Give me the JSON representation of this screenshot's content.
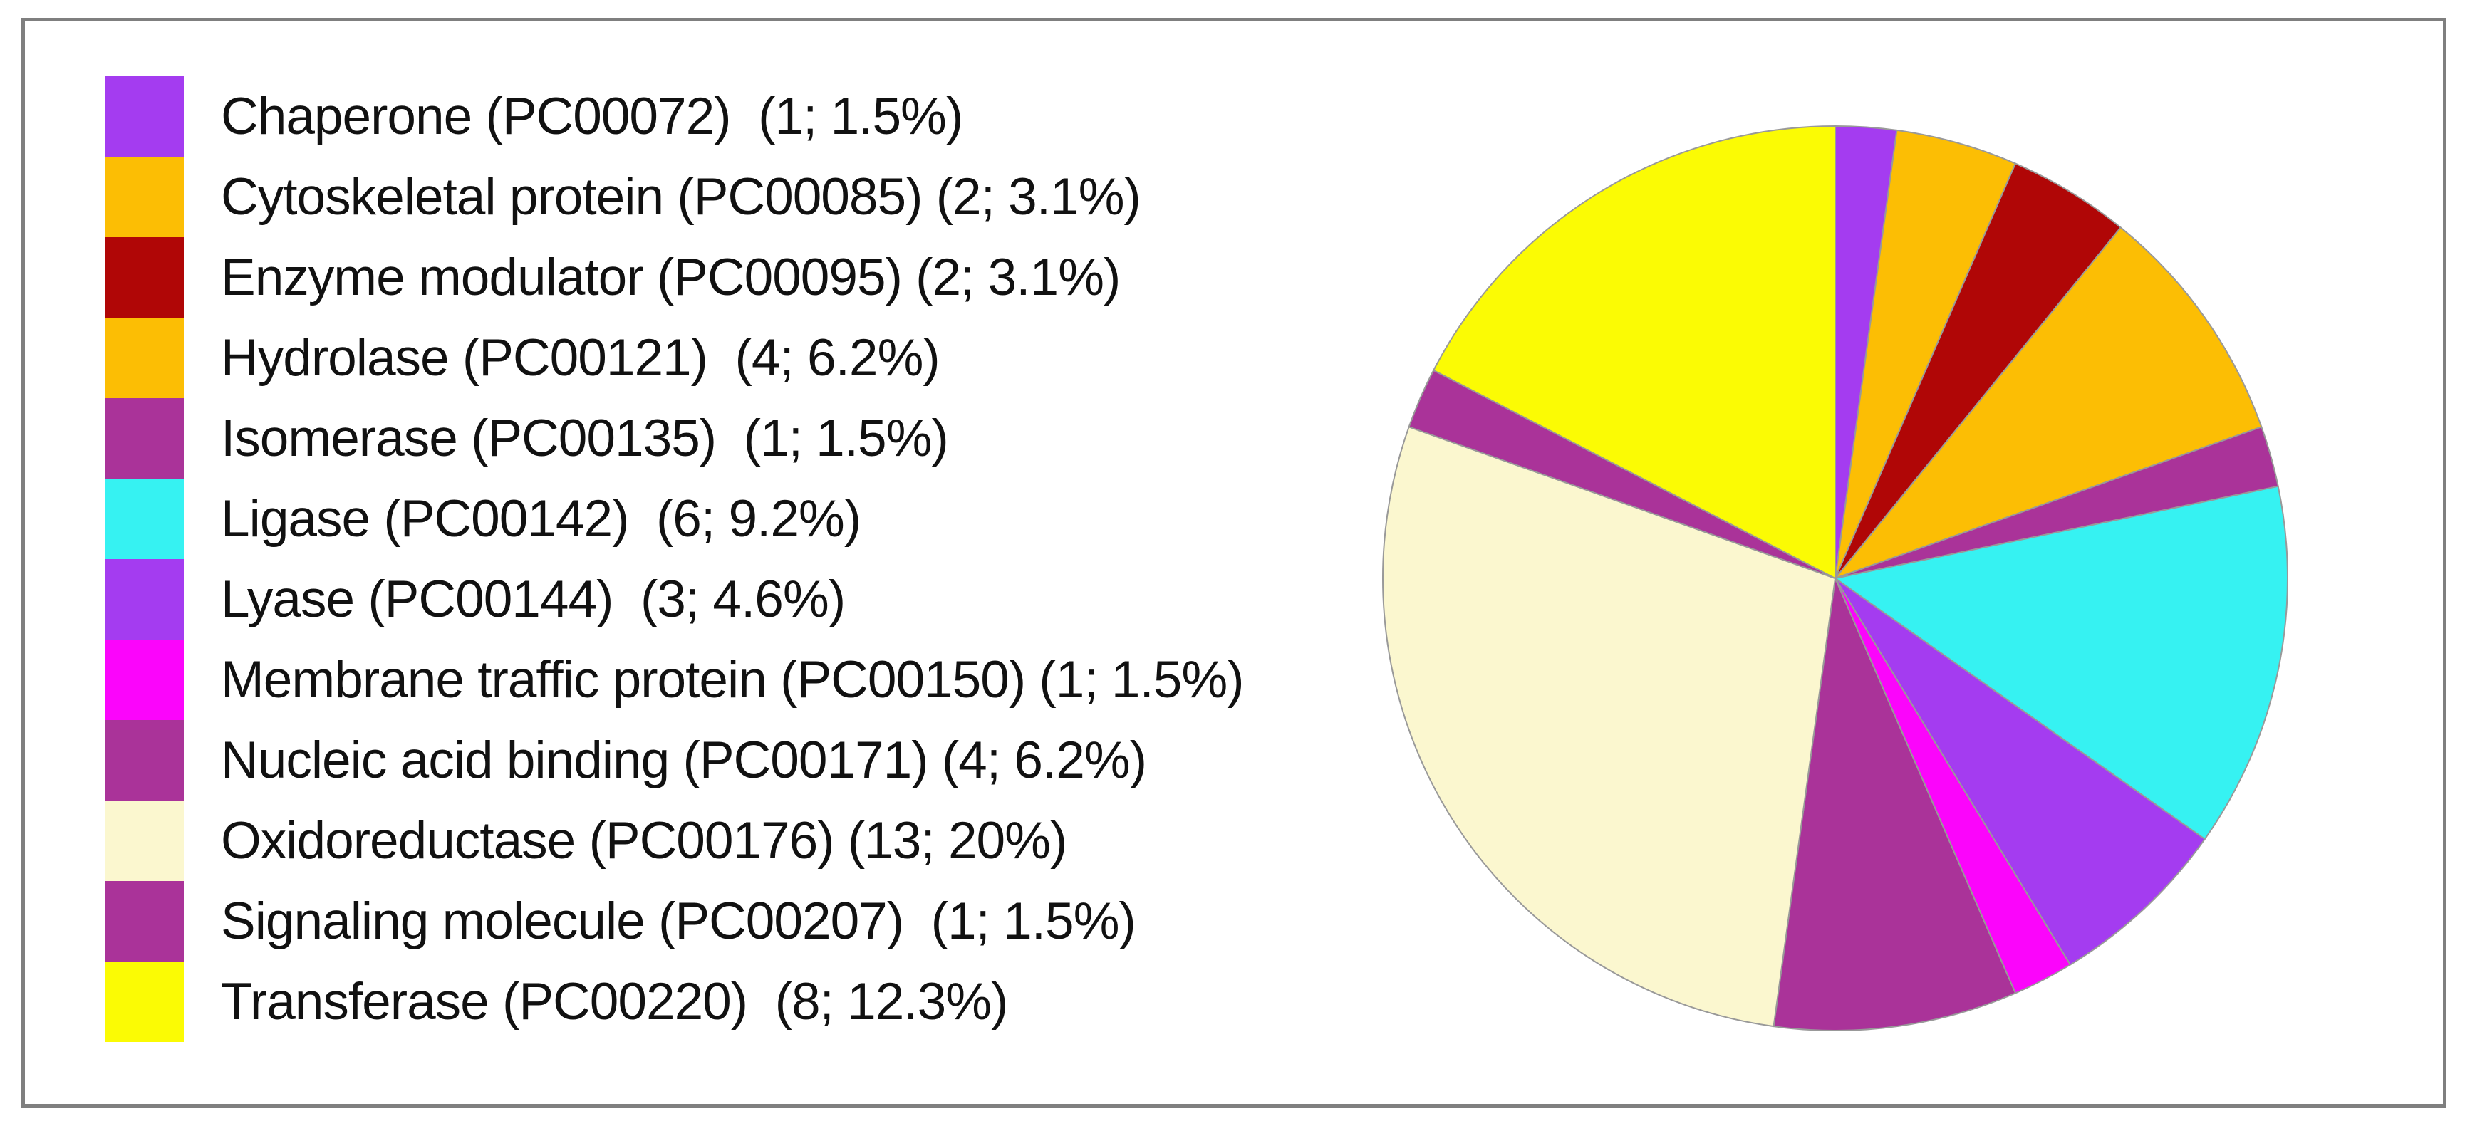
{
  "figure": {
    "background": "#ffffff",
    "frame_border_color": "#7f7f7f"
  },
  "legend": {
    "position": "left",
    "items": [
      {
        "label": "Chaperone (PC00072)  (1; 1.5%)",
        "color": "#A43CF0"
      },
      {
        "label": "Cytoskeletal protein (PC00085) (2; 3.1%)",
        "color": "#FCBE04"
      },
      {
        "label": "Enzyme modulator (PC00095) (2; 3.1%)",
        "color": "#B00606"
      },
      {
        "label": "Hydrolase (PC00121)  (4; 6.2%)",
        "color": "#FCBE04"
      },
      {
        "label": "Isomerase (PC00135)  (1; 1.5%)",
        "color": "#AA3399"
      },
      {
        "label": "Ligase (PC00142)  (6; 9.2%)",
        "color": "#36F2F2"
      },
      {
        "label": "Lyase (PC00144)  (3; 4.6%)",
        "color": "#A43CF0"
      },
      {
        "label": "Membrane traffic protein (PC00150) (1; 1.5%)",
        "color": "#FB05FB"
      },
      {
        "label": "Nucleic acid binding (PC00171) (4; 6.2%)",
        "color": "#AA3399"
      },
      {
        "label": "Oxidoreductase (PC00176) (13; 20%)",
        "color": "#FBF7CF"
      },
      {
        "label": "Signaling molecule (PC00207)  (1; 1.5%)",
        "color": "#AA3399"
      },
      {
        "label": "Transferase (PC00220)  (8; 12.3%)",
        "color": "#FBFB04"
      }
    ]
  },
  "chart_data": {
    "type": "pie",
    "title": "",
    "categories": [
      "Chaperone (PC00072)",
      "Cytoskeletal protein (PC00085)",
      "Enzyme modulator (PC00095)",
      "Hydrolase (PC00121)",
      "Isomerase (PC00135)",
      "Ligase (PC00142)",
      "Lyase (PC00144)",
      "Membrane traffic protein (PC00150)",
      "Nucleic acid binding (PC00171)",
      "Oxidoreductase (PC00176)",
      "Signaling molecule (PC00207)",
      "Transferase (PC00220)"
    ],
    "values": [
      1,
      2,
      2,
      4,
      1,
      6,
      3,
      1,
      4,
      13,
      1,
      8
    ],
    "percent_labels": [
      "1.5%",
      "3.1%",
      "3.1%",
      "6.2%",
      "1.5%",
      "9.2%",
      "4.6%",
      "1.5%",
      "6.2%",
      "20%",
      "1.5%",
      "12.3%"
    ],
    "colors": [
      "#A43CF0",
      "#FCBE04",
      "#B00606",
      "#FCBE04",
      "#AA3399",
      "#36F2F2",
      "#A43CF0",
      "#FB05FB",
      "#AA3399",
      "#FBF7CF",
      "#AA3399",
      "#FBFB04"
    ],
    "slice_outline_color": "#999999",
    "start_angle_deg": 0,
    "direction": "clockwise",
    "legend_position": "left",
    "grid": false
  }
}
